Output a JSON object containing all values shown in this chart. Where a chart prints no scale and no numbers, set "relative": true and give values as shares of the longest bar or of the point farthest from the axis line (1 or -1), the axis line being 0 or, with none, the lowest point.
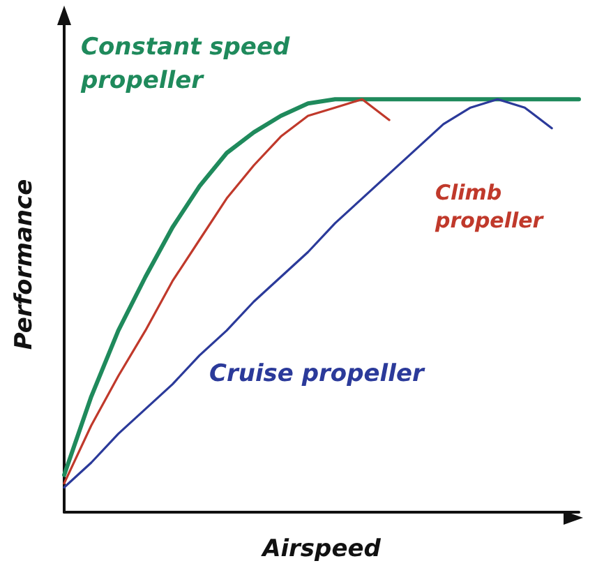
{
  "chart_data": {
    "type": "line",
    "relative": true,
    "xlabel": "Airspeed",
    "ylabel": "Performance",
    "marker": "none",
    "grid": false,
    "legend": false,
    "categories": [
      null,
      null,
      null,
      null,
      null,
      null,
      null,
      null,
      null,
      null,
      null,
      null,
      null,
      null,
      null,
      null,
      null,
      null,
      null,
      null
    ],
    "series": [
      {
        "name": "Constant speed propeller",
        "color": "#1f8a5c",
        "values": [
          0.09,
          0.28,
          0.44,
          0.57,
          0.69,
          0.79,
          0.87,
          0.92,
          0.96,
          0.99,
          1,
          1,
          1,
          1,
          1,
          1,
          1,
          1,
          1,
          1
        ]
      },
      {
        "name": "Climb propeller",
        "color": "#c0392b",
        "values": [
          0.07,
          0.21,
          0.33,
          0.44,
          0.56,
          0.66,
          0.76,
          0.84,
          0.91,
          0.96,
          0.98,
          1,
          0.95,
          null,
          null,
          null,
          null,
          null,
          null,
          null
        ]
      },
      {
        "name": "Cruise propeller",
        "color": "#2b3a9a",
        "values": [
          0.06,
          0.12,
          0.19,
          0.25,
          0.31,
          0.38,
          0.44,
          0.51,
          0.57,
          0.63,
          0.7,
          0.76,
          0.82,
          0.88,
          0.94,
          0.98,
          1,
          0.98,
          0.93,
          null
        ]
      }
    ]
  }
}
